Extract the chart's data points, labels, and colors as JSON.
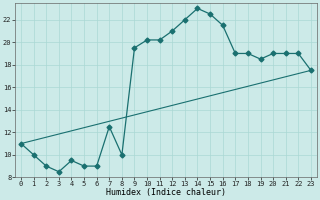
{
  "xlabel": "Humidex (Indice chaleur)",
  "curve1_x": [
    0,
    1,
    2,
    3,
    4,
    5,
    6,
    7,
    8,
    9,
    10,
    11,
    12,
    13,
    14,
    15,
    16,
    17,
    18,
    19,
    20,
    21,
    22,
    23
  ],
  "curve1_y": [
    11,
    10,
    9,
    8.5,
    9.5,
    9,
    9,
    12.5,
    10,
    19.5,
    20.2,
    20.2,
    21,
    22,
    23,
    22.5,
    21.5,
    19,
    19,
    18.5,
    19,
    19,
    19,
    17.5
  ],
  "curve2_x": [
    0,
    23
  ],
  "curve2_y": [
    11,
    17.5
  ],
  "line_color": "#1a7070",
  "bg_color": "#cceae8",
  "grid_major_color": "#aad8d4",
  "grid_minor_color": "#bde4e0",
  "ylim": [
    8,
    23.5
  ],
  "xlim": [
    -0.5,
    23.5
  ],
  "yticks": [
    8,
    10,
    12,
    14,
    16,
    18,
    20,
    22
  ],
  "xticks": [
    0,
    1,
    2,
    3,
    4,
    5,
    6,
    7,
    8,
    9,
    10,
    11,
    12,
    13,
    14,
    15,
    16,
    17,
    18,
    19,
    20,
    21,
    22,
    23
  ],
  "tick_fontsize": 5,
  "xlabel_fontsize": 6,
  "marker_size": 2.5
}
